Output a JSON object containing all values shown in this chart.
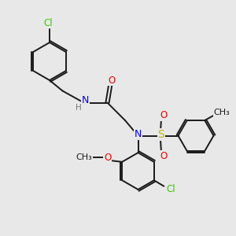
{
  "bg_color": "#e8e8e8",
  "bond_color": "#1a1a1a",
  "bond_lw": 1.4,
  "cl_color": "#33cc00",
  "n_color": "#0000ee",
  "o_color": "#ee0000",
  "s_color": "#bbbb00",
  "h_color": "#777777",
  "font_size": 8.5,
  "fig_size": [
    3.0,
    3.0
  ],
  "dpi": 100,
  "xlim": [
    0,
    10
  ],
  "ylim": [
    0,
    10
  ]
}
